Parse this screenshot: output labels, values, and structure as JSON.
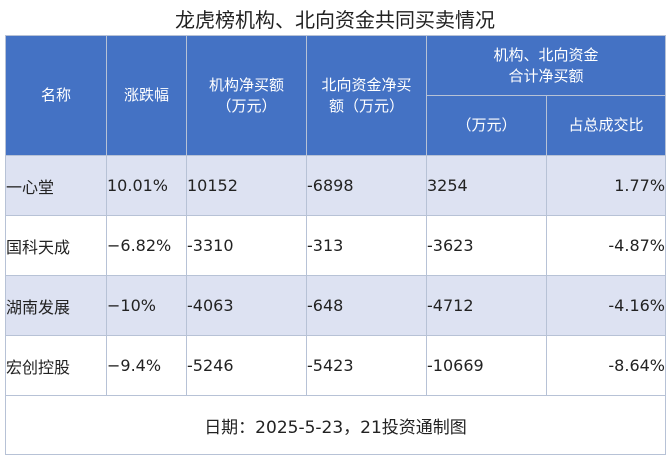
{
  "title": "龙虎榜机构、北向资金共同买卖情况",
  "headers": {
    "name": "名称",
    "change": "涨跌幅",
    "inst_net_l1": "机构净买额",
    "inst_net_l2": "（万元）",
    "north_net_l1": "北向资金净买",
    "north_net_l2": "额（万元）",
    "combined_l1": "机构、北向资金",
    "combined_l2": "合计净买额",
    "combined_unit": "（万元）",
    "share": "占总成交比"
  },
  "rows": [
    {
      "name": "一心堂",
      "change": "10.01%",
      "inst": "10152",
      "north": "-6898",
      "total": "3254",
      "share": "1.77%"
    },
    {
      "name": "国科天成",
      "change": "−6.82%",
      "inst": "-3310",
      "north": "-313",
      "total": "-3623",
      "share": "-4.87%"
    },
    {
      "name": "湖南发展",
      "change": "−10%",
      "inst": "-4063",
      "north": "-648",
      "total": "-4712",
      "share": "-4.16%"
    },
    {
      "name": "宏创控股",
      "change": "−9.4%",
      "inst": "-5246",
      "north": "-5423",
      "total": "-10669",
      "share": "-8.64%"
    }
  ],
  "footer": "日期：2025-5-23，21投资通制图",
  "colors": {
    "header": "#4472c4",
    "band": "#dde2f2"
  }
}
